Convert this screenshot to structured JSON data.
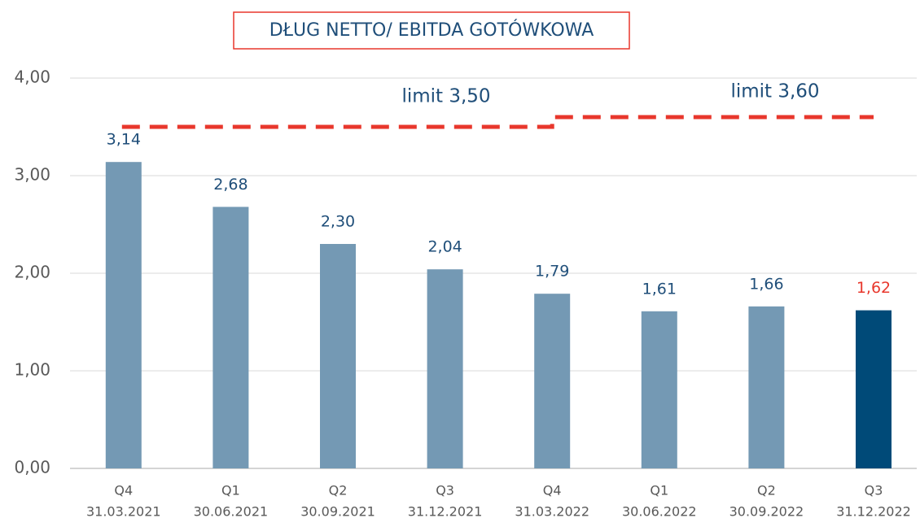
{
  "chart_data": {
    "type": "bar",
    "title": "DŁUG NETTO/ EBITDA GOTÓWKOWA",
    "categories": [
      [
        "Q4",
        "31.03.2021"
      ],
      [
        "Q1",
        "30.06.2021"
      ],
      [
        "Q2",
        "30.09.2021"
      ],
      [
        "Q3",
        "31.12.2021"
      ],
      [
        "Q4",
        "31.03.2022"
      ],
      [
        "Q1",
        "30.06.2022"
      ],
      [
        "Q2",
        "30.09.2022"
      ],
      [
        "Q3",
        "31.12.2022"
      ]
    ],
    "values": [
      3.14,
      2.68,
      2.3,
      2.04,
      1.79,
      1.61,
      1.66,
      1.62
    ],
    "value_labels": [
      "3,14",
      "2,68",
      "2,30",
      "2,04",
      "1,79",
      "1,61",
      "1,66",
      "1,62"
    ],
    "colors": [
      "#7499b4",
      "#7499b4",
      "#7499b4",
      "#7499b4",
      "#7499b4",
      "#7499b4",
      "#7499b4",
      "#004a78"
    ],
    "label_colors": [
      "#1f4e79",
      "#1f4e79",
      "#1f4e79",
      "#1f4e79",
      "#1f4e79",
      "#1f4e79",
      "#1f4e79",
      "#e8372c"
    ],
    "limit": {
      "color": "#e8372c",
      "values": [
        3.5,
        3.5,
        3.5,
        3.5,
        3.6,
        3.6,
        3.6,
        3.6
      ]
    },
    "annotations": [
      "limit 3,50",
      "limit 3,60"
    ],
    "ylim": [
      0,
      4
    ],
    "yticks": [
      {
        "value": 0,
        "label": "0,00"
      },
      {
        "value": 1,
        "label": "1,00"
      },
      {
        "value": 2,
        "label": "2,00"
      },
      {
        "value": 3,
        "label": "3,00"
      },
      {
        "value": 4,
        "label": "4,00"
      }
    ],
    "grid": true
  }
}
